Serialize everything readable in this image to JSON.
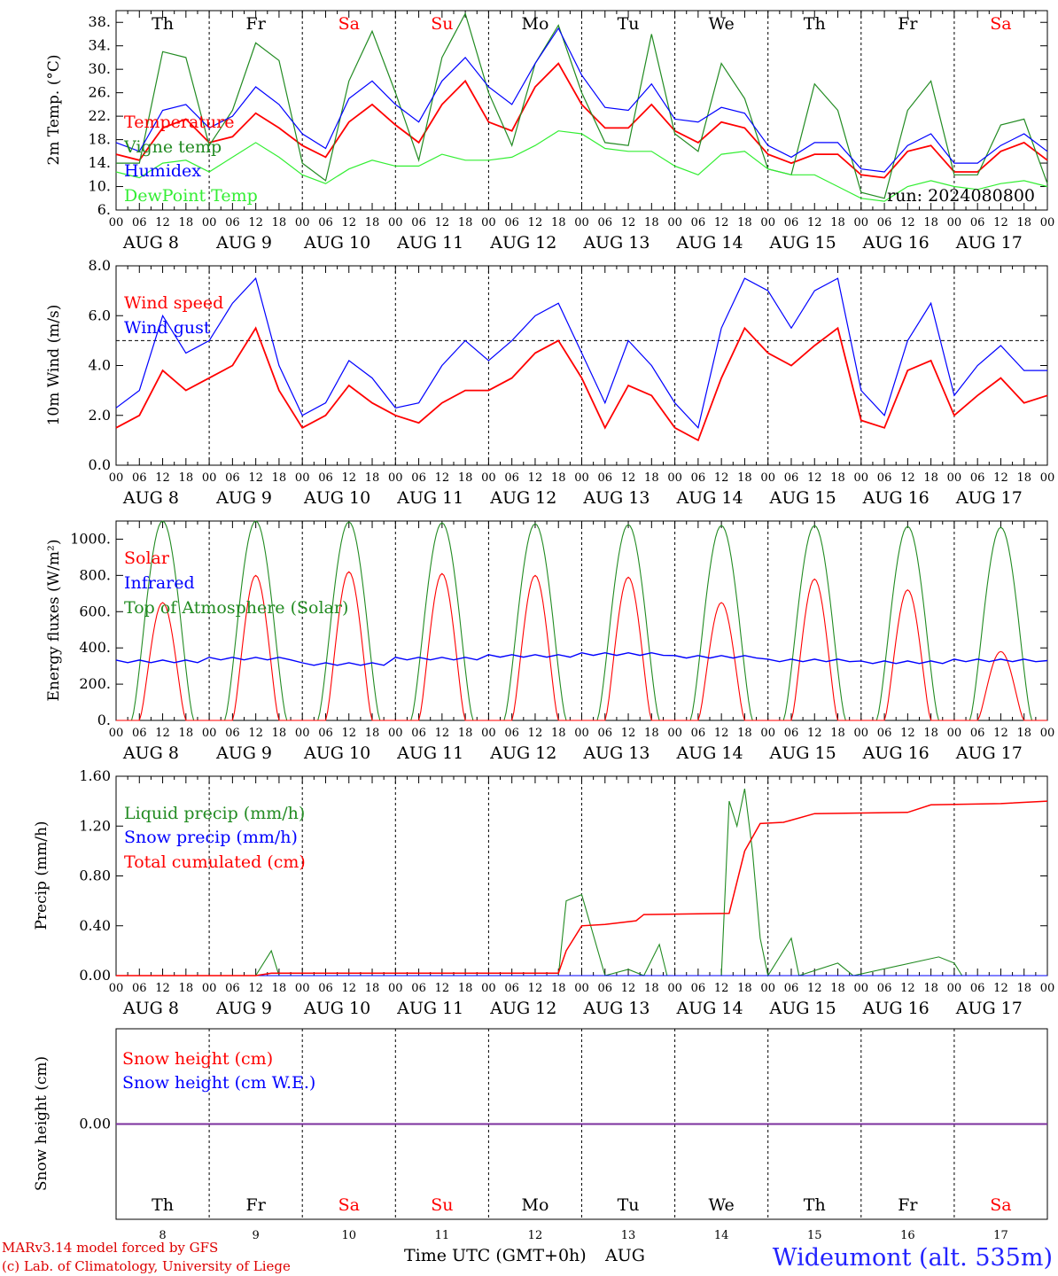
{
  "meta": {
    "run": "run: 2024080800",
    "footer_model": "MARv3.14 model forced by GFS",
    "footer_copyright": "(c) Lab. of Climatology, University of Liege",
    "xlabel": "Time UTC (GMT+0h)",
    "xlabel_month": "AUG",
    "station": "Wideumont (alt. 535m)"
  },
  "days": {
    "names": [
      "Th",
      "Fr",
      "Sa",
      "Su",
      "Mo",
      "Tu",
      "We",
      "Th",
      "Fr",
      "Sa"
    ],
    "dates": [
      "AUG  8",
      "AUG  9",
      "AUG 10",
      "AUG 11",
      "AUG 12",
      "AUG 13",
      "AUG 14",
      "AUG 15",
      "AUG 16",
      "AUG 17"
    ],
    "numbers": [
      "8",
      "9",
      "10",
      "11",
      "12",
      "13",
      "14",
      "15",
      "16",
      "17"
    ],
    "weekend": [
      false,
      false,
      true,
      true,
      false,
      false,
      false,
      false,
      false,
      true
    ],
    "hour_ticks": [
      "00",
      "06",
      "12",
      "18"
    ],
    "end_tick": "00"
  },
  "colors": {
    "temperature": "#ff0000",
    "vigne": "#228b22",
    "humidex": "#0000ff",
    "dewpoint": "#33ee33",
    "weekend": "#ff0000",
    "snow_line": "#7b2f9e",
    "station": "#2222ff",
    "footer": "#dd0000"
  },
  "chart_data": [
    {
      "type": "line",
      "ylabel": "2m Temp. (°C)",
      "ylim": [
        6,
        40
      ],
      "yticks": [
        "6.",
        "10.",
        "14.",
        "18.",
        "22.",
        "26.",
        "30.",
        "34.",
        "38."
      ],
      "x_hours": [
        0,
        6,
        12,
        18,
        24,
        30,
        36,
        42,
        48,
        54,
        60,
        66,
        72,
        78,
        84,
        90,
        96,
        102,
        108,
        114,
        120,
        126,
        132,
        138,
        144,
        150,
        156,
        162,
        168,
        174,
        180,
        186,
        192,
        198,
        204,
        210,
        216,
        222,
        228,
        234,
        240
      ],
      "series": [
        {
          "name": "Temperature",
          "color_key": "temperature",
          "values": [
            15.5,
            14.5,
            20,
            21.5,
            17.5,
            18.5,
            22.5,
            20,
            17,
            15,
            21,
            24,
            20.5,
            17.5,
            24,
            28,
            21,
            19.5,
            27,
            31,
            24,
            20,
            20,
            24,
            19.5,
            17.5,
            21,
            20,
            15.5,
            14,
            15.5,
            15.5,
            12,
            11.5,
            16,
            17,
            12.5,
            12.5,
            16,
            17.5,
            14.5
          ]
        },
        {
          "name": "Vigne temp",
          "color_key": "vigne",
          "values": [
            14,
            14,
            33,
            32,
            17,
            23,
            34.5,
            31.5,
            14,
            11,
            28,
            36.5,
            26,
            14.5,
            32,
            39.5,
            26,
            17,
            31,
            37.5,
            26,
            17.5,
            17,
            36,
            19,
            16,
            31,
            25,
            13,
            12,
            27.5,
            23,
            9,
            8,
            23,
            28,
            12,
            12,
            20.5,
            21.5,
            10.5
          ]
        },
        {
          "name": "Humidex",
          "color_key": "humidex",
          "values": [
            17.5,
            16,
            23,
            24,
            20,
            22,
            27,
            24,
            19,
            16.5,
            25,
            28,
            24,
            21,
            28,
            32,
            27,
            24,
            31,
            37,
            29,
            23.5,
            23,
            27.5,
            21.5,
            21,
            23.5,
            22.5,
            17,
            15,
            17.5,
            17.5,
            13,
            12.5,
            17,
            19,
            14,
            14,
            17,
            19,
            16
          ]
        },
        {
          "name": "DewPoint Temp",
          "color_key": "dewpoint",
          "values": [
            12.5,
            11.5,
            14,
            14.5,
            12.5,
            15,
            17.5,
            15,
            12,
            10.5,
            13,
            14.5,
            13.5,
            13.5,
            15.5,
            14.5,
            14.5,
            15,
            17,
            19.5,
            19,
            16.5,
            16,
            16,
            13.5,
            12,
            15.5,
            16,
            13,
            12,
            12,
            10,
            8,
            7.5,
            10,
            11,
            10,
            9.5,
            10.5,
            11,
            10
          ]
        }
      ]
    },
    {
      "type": "line",
      "ylabel": "10m Wind (m/s)",
      "ylim": [
        0,
        8
      ],
      "yticks": [
        "0.0",
        "2.0",
        "4.0",
        "6.0",
        "8.0"
      ],
      "reference_line": 5,
      "x_hours": [
        0,
        6,
        12,
        18,
        24,
        30,
        36,
        42,
        48,
        54,
        60,
        66,
        72,
        78,
        84,
        90,
        96,
        102,
        108,
        114,
        120,
        126,
        132,
        138,
        144,
        150,
        156,
        162,
        168,
        174,
        180,
        186,
        192,
        198,
        204,
        210,
        216,
        222,
        228,
        234,
        240
      ],
      "series": [
        {
          "name": "Wind speed",
          "color_key": "temperature",
          "values": [
            1.5,
            2.0,
            3.8,
            3.0,
            3.5,
            4.0,
            5.5,
            3.0,
            1.5,
            2.0,
            3.2,
            2.5,
            2.0,
            1.7,
            2.5,
            3.0,
            3.0,
            3.5,
            4.5,
            5.0,
            3.5,
            1.5,
            3.2,
            2.8,
            1.5,
            1.0,
            3.5,
            5.5,
            4.5,
            4.0,
            4.8,
            5.5,
            1.8,
            1.5,
            3.8,
            4.2,
            2.0,
            2.8,
            3.5,
            2.5,
            2.8
          ]
        },
        {
          "name": "Wind gust",
          "color_key": "humidex",
          "values": [
            2.3,
            3.0,
            6.0,
            4.5,
            5.0,
            6.5,
            7.5,
            4.0,
            2.0,
            2.5,
            4.2,
            3.5,
            2.3,
            2.5,
            4.0,
            5.0,
            4.2,
            5.0,
            6.0,
            6.5,
            4.5,
            2.5,
            5.0,
            4.0,
            2.5,
            1.5,
            5.5,
            7.5,
            7.0,
            5.5,
            7.0,
            7.5,
            3.0,
            2.0,
            5.0,
            6.5,
            2.8,
            4.0,
            4.8,
            3.8,
            3.8
          ]
        }
      ]
    },
    {
      "type": "line",
      "ylabel": "Energy fluxes (W/m²)",
      "ylim": [
        0,
        1100
      ],
      "yticks": [
        "0.",
        "200.",
        "400.",
        "600.",
        "800.",
        "1000."
      ],
      "series": [
        {
          "name": "Solar",
          "color_key": "temperature",
          "daily_peak": [
            650,
            800,
            820,
            810,
            800,
            790,
            650,
            780,
            720,
            380
          ]
        },
        {
          "name": "Infrared",
          "color_key": "humidex",
          "daily_mean": [
            325,
            340,
            310,
            340,
            355,
            365,
            350,
            330,
            320,
            330
          ]
        },
        {
          "name": "Top of Atmosphere (Solar)",
          "color_key": "vigne",
          "daily_peak": [
            1100,
            1100,
            1095,
            1090,
            1085,
            1080,
            1075,
            1075,
            1070,
            1065
          ]
        }
      ]
    },
    {
      "type": "line",
      "ylabel": "Precip (mm/h)",
      "ylim": [
        0,
        1.6
      ],
      "yticks": [
        "0.00",
        "0.40",
        "0.80",
        "1.20",
        "1.60"
      ],
      "series": [
        {
          "name": "Liquid precip (mm/h)",
          "color_key": "vigne",
          "points_hours": [
            [
              0,
              0
            ],
            [
              36,
              0
            ],
            [
              40,
              0.2
            ],
            [
              42,
              0
            ],
            [
              114,
              0
            ],
            [
              116,
              0.6
            ],
            [
              120,
              0.65
            ],
            [
              126,
              0
            ],
            [
              132,
              0.05
            ],
            [
              136,
              0
            ],
            [
              140,
              0.25
            ],
            [
              142,
              0
            ],
            [
              156,
              0
            ],
            [
              158,
              1.4
            ],
            [
              160,
              1.2
            ],
            [
              162,
              1.5
            ],
            [
              164,
              1.0
            ],
            [
              166,
              0.3
            ],
            [
              168,
              0
            ],
            [
              174,
              0.3
            ],
            [
              176,
              0
            ],
            [
              186,
              0.1
            ],
            [
              190,
              0
            ],
            [
              212,
              0.15
            ],
            [
              216,
              0.1
            ],
            [
              218,
              0
            ],
            [
              240,
              0
            ]
          ]
        },
        {
          "name": "Snow precip (mm/h)",
          "color_key": "humidex",
          "points_hours": [
            [
              0,
              0
            ],
            [
              240,
              0
            ]
          ]
        },
        {
          "name": "Total cumulated (cm)",
          "color_key": "temperature",
          "points_hours": [
            [
              0,
              0
            ],
            [
              36,
              0
            ],
            [
              40,
              0.02
            ],
            [
              114,
              0.02
            ],
            [
              116,
              0.2
            ],
            [
              120,
              0.4
            ],
            [
              126,
              0.41
            ],
            [
              134,
              0.44
            ],
            [
              136,
              0.49
            ],
            [
              158,
              0.5
            ],
            [
              162,
              1.0
            ],
            [
              166,
              1.22
            ],
            [
              172,
              1.23
            ],
            [
              180,
              1.3
            ],
            [
              204,
              1.31
            ],
            [
              210,
              1.37
            ],
            [
              228,
              1.38
            ],
            [
              240,
              1.4
            ]
          ]
        }
      ]
    },
    {
      "type": "line",
      "ylabel": "Snow height (cm)",
      "ylim": [
        -1,
        1
      ],
      "yticks": [
        "0.00"
      ],
      "series": [
        {
          "name": "Snow height (cm)",
          "color_key": "temperature",
          "values": [
            0,
            0
          ]
        },
        {
          "name": "Snow height (cm W.E.)",
          "color_key": "humidex",
          "values": [
            0,
            0
          ]
        }
      ]
    }
  ]
}
